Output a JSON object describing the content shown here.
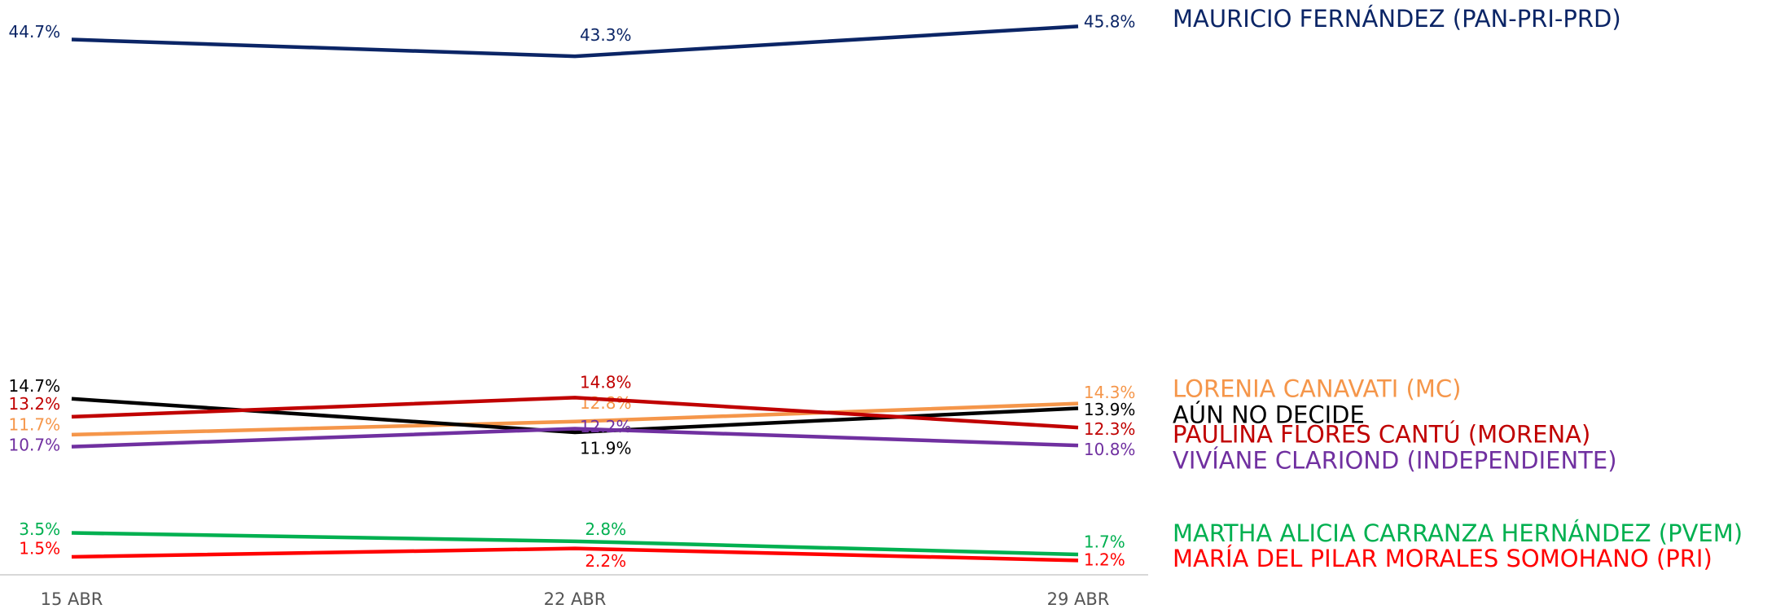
{
  "chart_data": {
    "type": "line",
    "categories": [
      "15 ABR",
      "22 ABR",
      "29 ABR"
    ],
    "ylim": [
      0,
      48
    ],
    "series": [
      {
        "name": "MAURICIO FERNÁNDEZ (PAN-PRI-PRD)",
        "color": "#0b2566",
        "values": [
          44.7,
          43.3,
          45.8
        ],
        "value_labels": [
          "44.7%",
          "43.3%",
          "45.8%"
        ]
      },
      {
        "name": "LORENIA CANAVATI (MC)",
        "color": "#f5964a",
        "values": [
          11.7,
          12.8,
          14.3
        ],
        "value_labels": [
          "11.7%",
          "12.8%",
          "14.3%"
        ]
      },
      {
        "name": "AÚN NO DECIDE",
        "color": "#000000",
        "values": [
          14.7,
          11.9,
          13.9
        ],
        "value_labels": [
          "14.7%",
          "11.9%",
          "13.9%"
        ]
      },
      {
        "name": "PAULINA FLORES CANTÚ (MORENA)",
        "color": "#c00000",
        "values": [
          13.2,
          14.8,
          12.3
        ],
        "value_labels": [
          "13.2%",
          "14.8%",
          "12.3%"
        ]
      },
      {
        "name": "VIVÍANE CLARIOND (INDEPENDIENTE)",
        "color": "#7030a0",
        "values": [
          10.7,
          12.2,
          10.8
        ],
        "value_labels": [
          "10.7%",
          "12.2%",
          "10.8%"
        ]
      },
      {
        "name": "MARTHA ALICIA CARRANZA HERNÁNDEZ (PVEM)",
        "color": "#00b050",
        "values": [
          3.5,
          2.8,
          1.7
        ],
        "value_labels": [
          "3.5%",
          "2.8%",
          "1.7%"
        ]
      },
      {
        "name": "MARÍA DEL PILAR MORALES SOMOHANO (PRI)",
        "color": "#ff0000",
        "values": [
          1.5,
          2.2,
          1.2
        ],
        "value_labels": [
          "1.5%",
          "2.2%",
          "1.2%"
        ]
      }
    ]
  }
}
